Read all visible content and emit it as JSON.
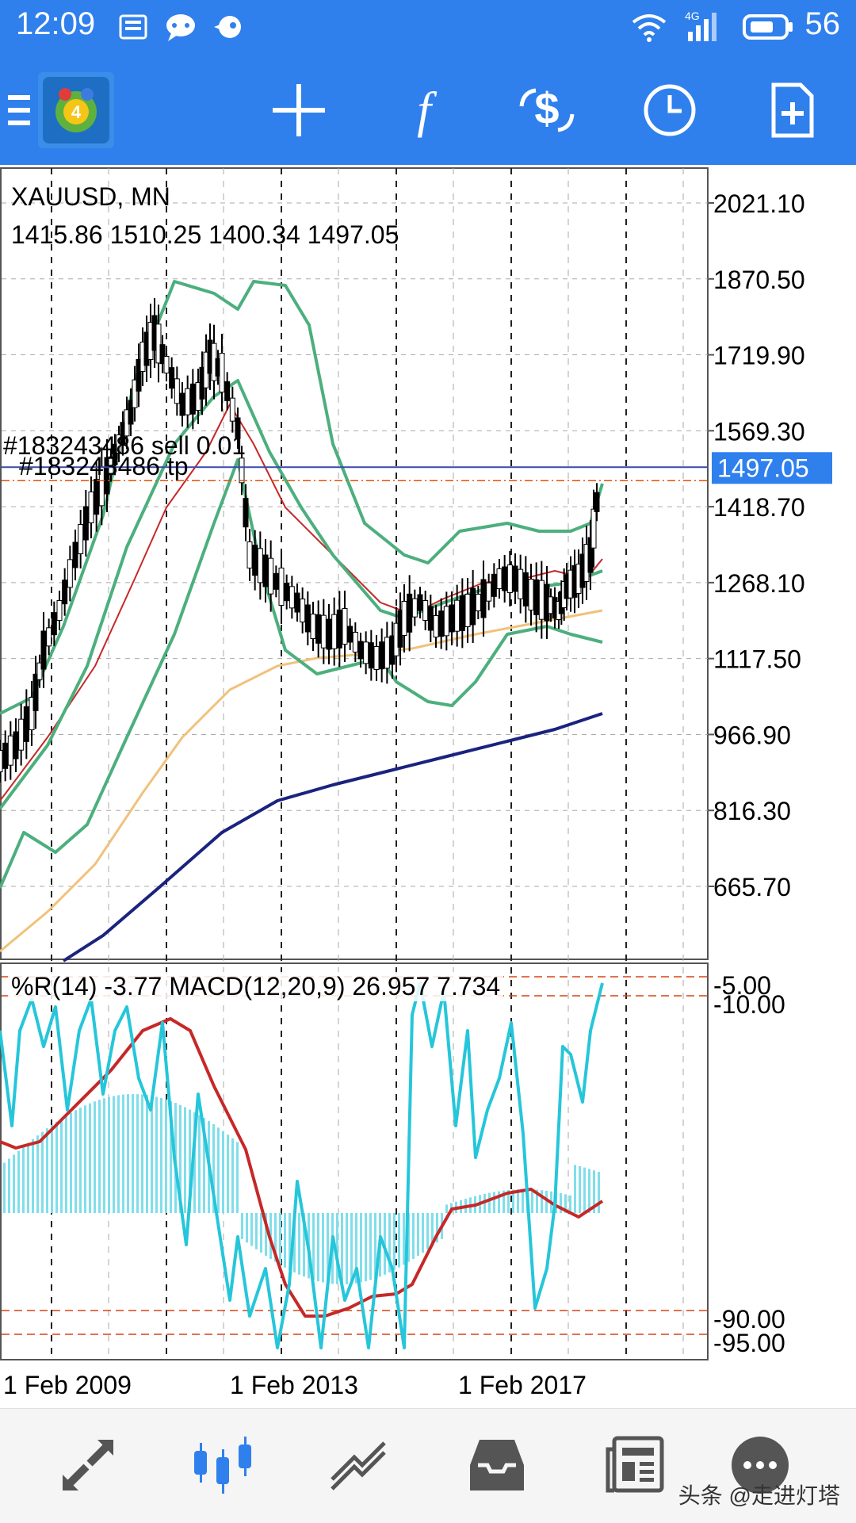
{
  "status_bar": {
    "time": "12:09",
    "network": "4G",
    "battery": "56",
    "icons": [
      "toutiao-icon",
      "chat-icon",
      "bird-icon",
      "wifi-icon",
      "signal-icon",
      "battery-icon"
    ]
  },
  "toolbar": {
    "buttons": [
      "menu-icon",
      "app-logo-icon",
      "crosshair-icon",
      "function-icon",
      "trade-icon",
      "clock-icon",
      "new-document-icon"
    ]
  },
  "chart": {
    "symbol": "XAUUSD, MN",
    "ohlc": "1415.86 1510.25 1400.34 1497.05",
    "current_price": "1497.05",
    "order_label_1": "#183243486 sell 0.01",
    "order_label_2": "#183243486 tp",
    "price_ticks": [
      "2021.10",
      "1870.50",
      "1719.90",
      "1569.30",
      "1418.70",
      "1268.10",
      "1117.50",
      "966.90",
      "816.30",
      "665.70"
    ],
    "indicator_label": "%R(14) -3.77 MACD(12,20,9) 26.957 7.734",
    "indicator_ticks": [
      "-5.00",
      "-10.00",
      "-90.00",
      "-95.00"
    ],
    "date_ticks": [
      "1 Feb 2009",
      "1 Feb 2013",
      "1 Feb 2017"
    ],
    "colors": {
      "bollinger": "#4caf7d",
      "ma_red": "#c62828",
      "ma_orange": "#f0c27b",
      "ma_navy": "#1a237e",
      "wpr": "#26c6da",
      "macd_signal": "#c62828",
      "price_tag": "#2f80ed"
    }
  },
  "bottom_bar": {
    "items": [
      "quotes-icon",
      "chart-icon",
      "trade-icon",
      "history-icon",
      "news-icon",
      "chat-icon"
    ]
  },
  "watermark": "头条 @走进灯塔"
}
